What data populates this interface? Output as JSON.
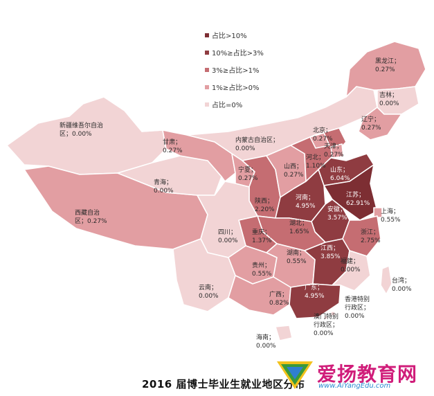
{
  "colors": {
    "gt10": "#7d2e33",
    "3to10": "#8f3c41",
    "1to3": "#c56d72",
    "0to1": "#e29ea2",
    "zero": "#f2d4d5"
  },
  "legend": [
    {
      "label": "占比>10%",
      "color": "#7d2e33"
    },
    {
      "label": "10%≥占比>3%",
      "color": "#8f3c41"
    },
    {
      "label": "3%≥占比>1%",
      "color": "#c56d72"
    },
    {
      "label": "1%≥占比>0%",
      "color": "#e29ea2"
    },
    {
      "label": "占比=0%",
      "color": "#f2d4d5"
    }
  ],
  "provinces": {
    "heilongjiang": {
      "name": "黑龙江；",
      "value": "0.27%",
      "tier": "0to1"
    },
    "jilin": {
      "name": "吉林；",
      "value": "0.00%",
      "tier": "zero"
    },
    "liaoning": {
      "name": "辽宁；",
      "value": "0.27%",
      "tier": "0to1"
    },
    "xinjiang": {
      "name": "新疆维吾尔自治",
      "value": "区；0.00%",
      "tier": "zero"
    },
    "gansu": {
      "name": "甘肃；",
      "value": "0.27%",
      "tier": "0to1"
    },
    "neimenggu": {
      "name": "内蒙古自治区；",
      "value": "0.00%",
      "tier": "zero"
    },
    "beijing": {
      "name": "北京；",
      "value": "0.27%",
      "tier": "0to1"
    },
    "tianjin": {
      "name": "天津；",
      "value": "0.27%",
      "tier": "0to1"
    },
    "hebei": {
      "name": "河北；",
      "value": "1.10%",
      "tier": "1to3"
    },
    "shanxi": {
      "name": "山西；",
      "value": "0.27%",
      "tier": "0to1"
    },
    "ningxia": {
      "name": "宁夏；",
      "value": "0.27%",
      "tier": "0to1"
    },
    "shandong": {
      "name": "山东；",
      "value": "6.04%",
      "tier": "3to10"
    },
    "qinghai": {
      "name": "青海；",
      "value": "0.00%",
      "tier": "zero"
    },
    "henan": {
      "name": "河南；",
      "value": "4.95%",
      "tier": "3to10"
    },
    "jiangsu": {
      "name": "江苏；",
      "value": "62.91%",
      "tier": "gt10"
    },
    "shaanxi": {
      "name": "陕西；",
      "value": "2.20%",
      "tier": "1to3"
    },
    "anhui": {
      "name": "安徽；",
      "value": "3.57%",
      "tier": "3to10"
    },
    "shanghai": {
      "name": "上海；",
      "value": "0.55%",
      "tier": "0to1"
    },
    "xizang": {
      "name": "西藏自治",
      "value": "区；0.27%",
      "tier": "0to1"
    },
    "sichuan": {
      "name": "四川；",
      "value": "0.00%",
      "tier": "zero"
    },
    "chongqing": {
      "name": "重庆；",
      "value": "1.37%",
      "tier": "1to3"
    },
    "hubei": {
      "name": "湖北；",
      "value": "1.65%",
      "tier": "1to3"
    },
    "zhejiang": {
      "name": "浙江；",
      "value": "2.75%",
      "tier": "1to3"
    },
    "hunan": {
      "name": "湖南；",
      "value": "0.55%",
      "tier": "0to1"
    },
    "jiangxi": {
      "name": "江西；",
      "value": "3.85%",
      "tier": "3to10"
    },
    "fujian": {
      "name": "福建；",
      "value": "0.00%",
      "tier": "zero"
    },
    "guizhou": {
      "name": "贵州；",
      "value": "0.55%",
      "tier": "0to1"
    },
    "taiwan": {
      "name": "台湾；",
      "value": "0.00%",
      "tier": "zero"
    },
    "yunnan": {
      "name": "云南；",
      "value": "0.00%",
      "tier": "zero"
    },
    "guangxi": {
      "name": "广西；",
      "value": "0.82%",
      "tier": "0to1"
    },
    "guangdong": {
      "name": "广东；",
      "value": "4.95%",
      "tier": "3to10"
    },
    "hongkong": {
      "name": "香港特别",
      "line2": "行政区；",
      "value": "0.00%",
      "tier": "zero"
    },
    "macao": {
      "name": "澳门特别",
      "line2": "行政区；",
      "value": "0.00%",
      "tier": "zero"
    },
    "hainan": {
      "name": "海南；",
      "value": "0.00%",
      "tier": "zero"
    }
  },
  "title": "2016 届博士毕业生就业地区分布",
  "watermark": {
    "name": "爱扬教育网",
    "url": "www.AiYangEdu.com"
  }
}
